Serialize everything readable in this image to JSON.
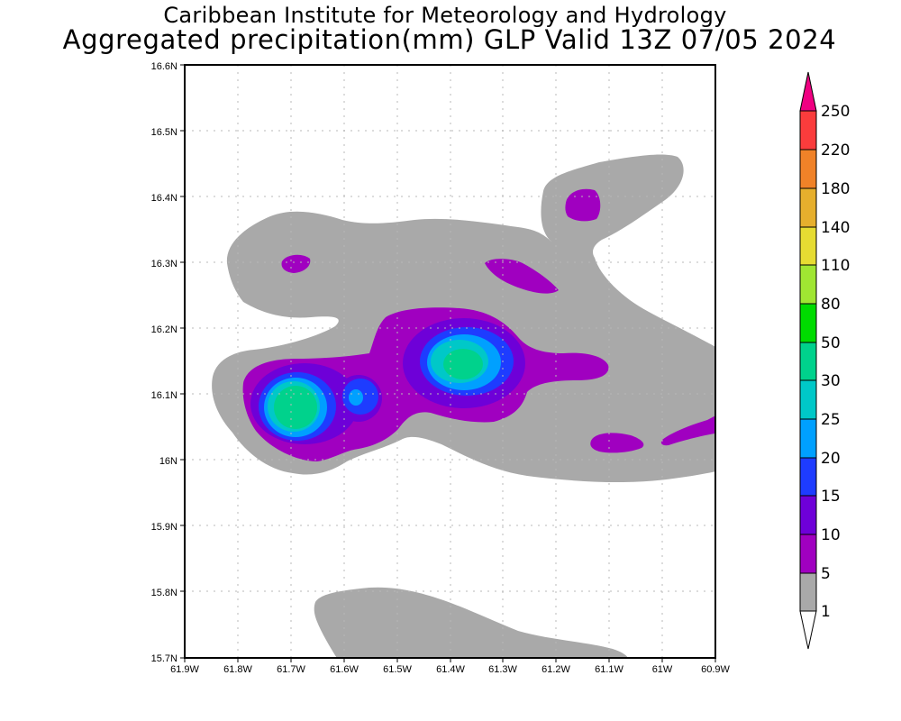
{
  "header": {
    "institute": "Caribbean Institute for Meteorology and Hydrology",
    "product_title": "Aggregated precipitation(mm) GLP Valid 13Z 07/05 2024"
  },
  "map": {
    "region": "Guadeloupe (GLP)",
    "variable": "Aggregated precipitation",
    "units": "mm",
    "lon_range": [
      -61.9,
      -60.9
    ],
    "lat_range": [
      15.7,
      16.6
    ],
    "grid": true,
    "x_tick_labels": [
      "61.9W",
      "61.8W",
      "61.7W",
      "61.6W",
      "61.5W",
      "61.4W",
      "61.3W",
      "61.2W",
      "61.1W",
      "61W",
      "60.9W"
    ],
    "y_tick_labels": [
      "15.7N",
      "15.8N",
      "15.9N",
      "16N",
      "16.1N",
      "16.2N",
      "16.3N",
      "16.4N",
      "16.5N",
      "16.6N"
    ],
    "precip_maxima_mm": [
      {
        "location": "western cell",
        "lon": -61.7,
        "lat": 16.08,
        "approx_max_mm": 40
      },
      {
        "location": "central cell",
        "lon": -61.38,
        "lat": 16.15,
        "approx_max_mm": 30
      },
      {
        "location": "small core",
        "lon": -61.58,
        "lat": 16.1,
        "approx_max_mm": 20
      }
    ]
  },
  "colorbar": {
    "levels": [
      "1",
      "5",
      "10",
      "15",
      "20",
      "25",
      "30",
      "50",
      "80",
      "110",
      "140",
      "180",
      "220",
      "250"
    ],
    "colors": [
      "#a9a9a9",
      "#a000c0",
      "#6e00d8",
      "#1e3cff",
      "#00a0ff",
      "#00c8c8",
      "#00d28c",
      "#00dc00",
      "#a0e632",
      "#e6dc32",
      "#e6af2d",
      "#f08228",
      "#fa3c3c",
      "#f00082"
    ],
    "below_min_color": "#ffffff"
  },
  "colors": {
    "none": "#ffffff",
    "c1_5": "#a9a9a9",
    "c5_10": "#a000c0",
    "c10_15": "#6e00d8",
    "c15_20": "#1e3cff",
    "c20_25": "#00a0ff",
    "c25_30": "#00c8c8",
    "c30_50": "#00d28c"
  }
}
